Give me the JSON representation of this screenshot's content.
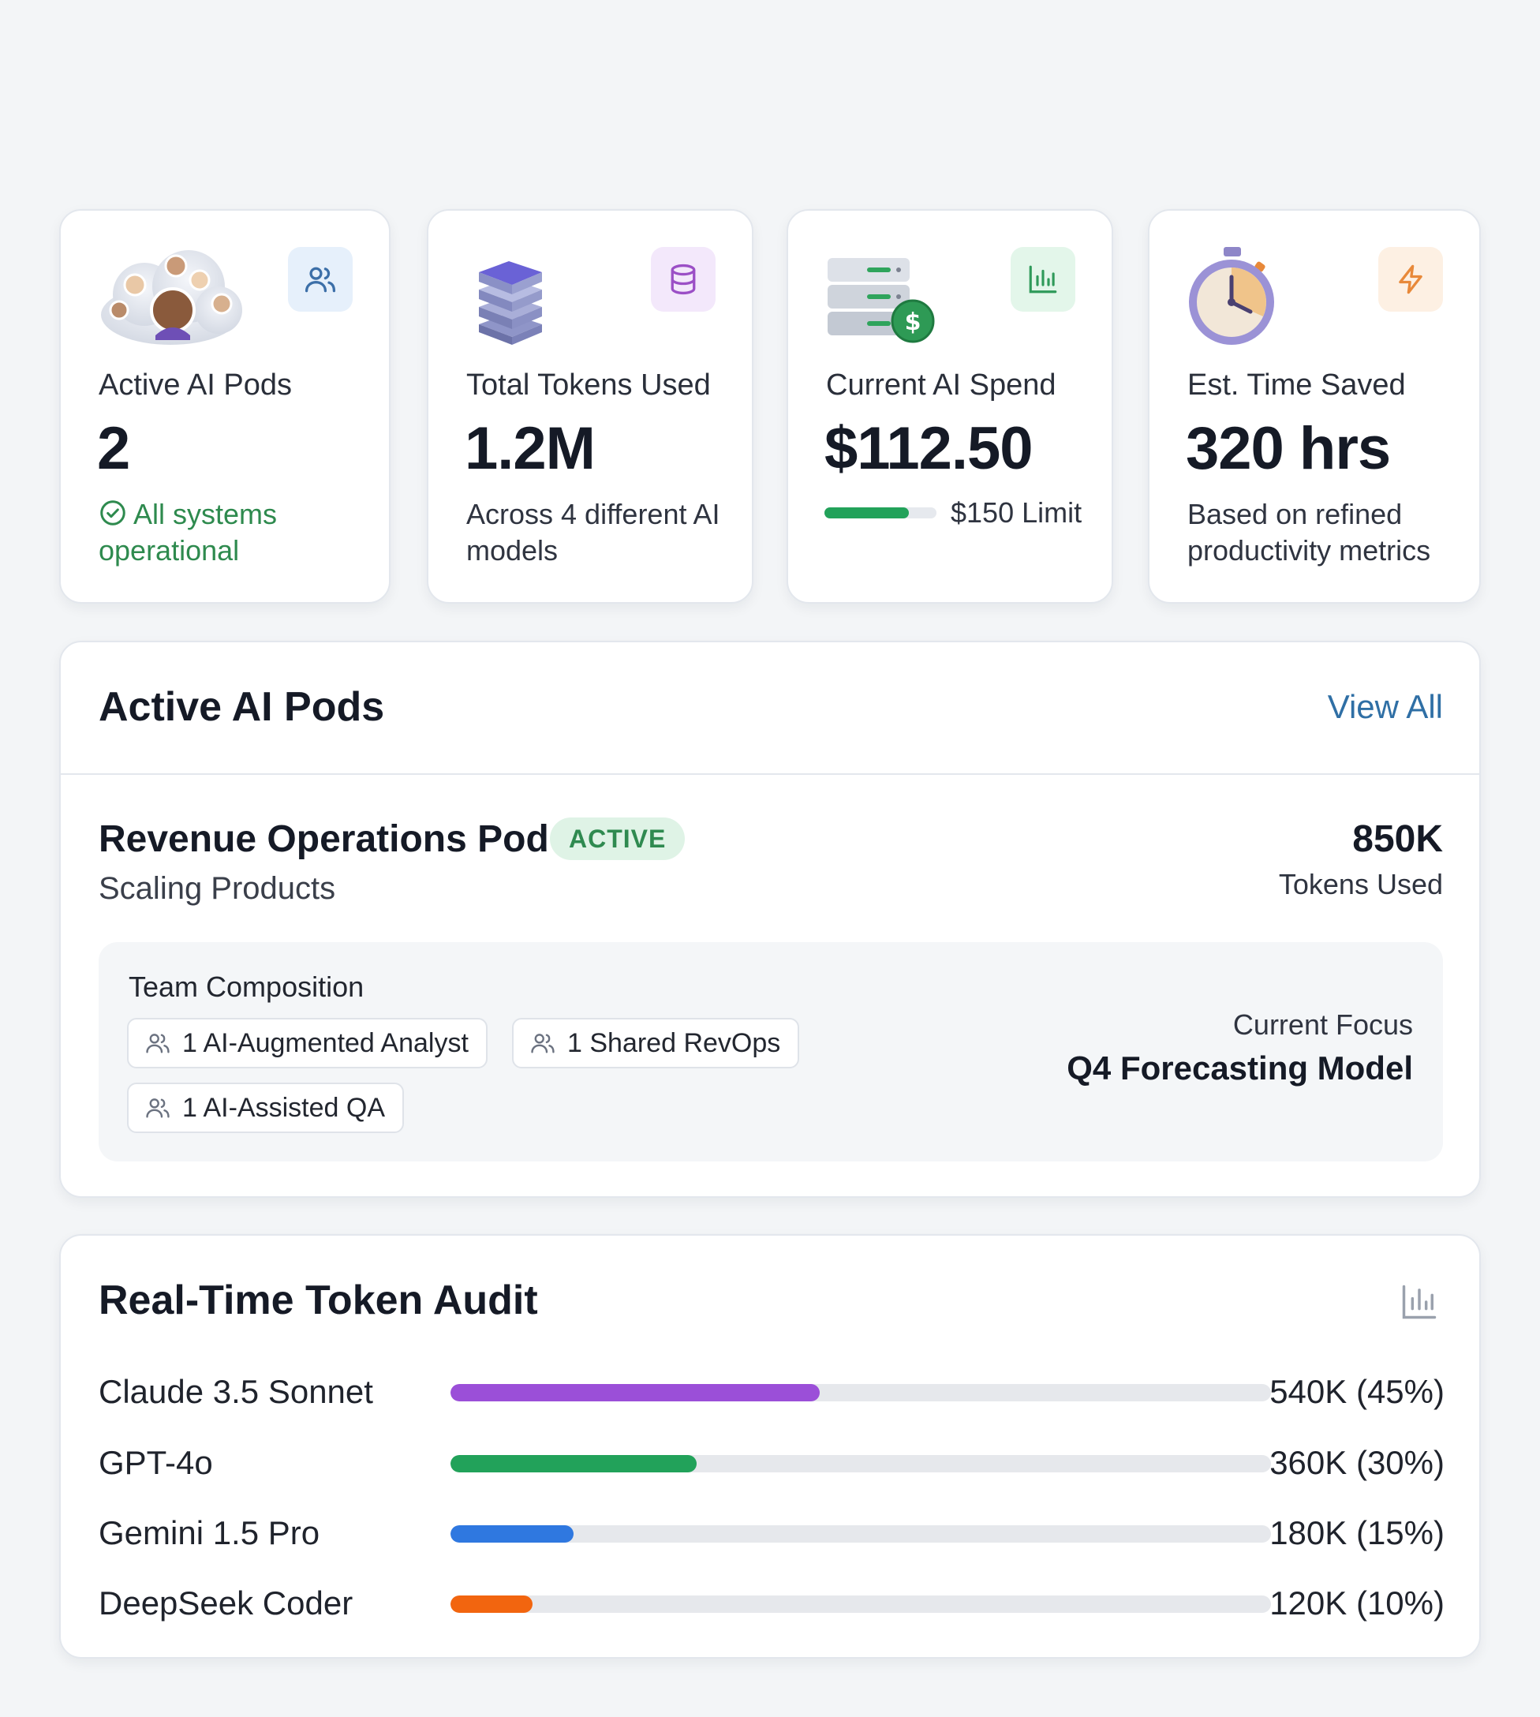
{
  "stats": [
    {
      "label": "Active AI Pods",
      "value": "2",
      "sub": "All systems operational",
      "status_color": "#2e8a4e",
      "icon": "users-icon",
      "badge_color": "#e6f0fb",
      "icon_color": "#3c6fa8"
    },
    {
      "label": "Total Tokens Used",
      "value": "1.2M",
      "sub": "Across 4 different AI models",
      "icon": "database-icon",
      "badge_color": "#f3e8fb",
      "icon_color": "#9b4fc6"
    },
    {
      "label": "Current AI Spend",
      "value": "$112.50",
      "limit_text": "$150 Limit",
      "spend_fraction": 0.75,
      "icon": "bar-chart-icon",
      "badge_color": "#e3f6ea",
      "icon_color": "#2f9a5a"
    },
    {
      "label": "Est. Time Saved",
      "value": "320 hrs",
      "sub": "Based on refined productivity metrics",
      "icon": "lightning-icon",
      "badge_color": "#fdf0e3",
      "icon_color": "#e8893a"
    }
  ],
  "pods_panel": {
    "title": "Active AI Pods",
    "view_all": "View All",
    "pod": {
      "name": "Revenue Operations Pod",
      "status": "ACTIVE",
      "subtitle": "Scaling Products",
      "tokens": "850K",
      "tokens_label": "Tokens Used",
      "team_title": "Team Composition",
      "members": [
        "1 AI-Augmented Analyst",
        "1 Shared RevOps",
        "1 AI-Assisted QA"
      ],
      "focus_label": "Current Focus",
      "focus_value": "Q4 Forecasting Model"
    }
  },
  "audit_panel": {
    "title": "Real-Time Token Audit",
    "icon": "bar-chart-icon",
    "models": [
      {
        "name": "Claude 3.5 Sonnet",
        "value": "540K (45%)",
        "percent": 45,
        "color": "#9b4fd8"
      },
      {
        "name": "GPT-4o",
        "value": "360K (30%)",
        "percent": 30,
        "color": "#22a25a"
      },
      {
        "name": "Gemini 1.5 Pro",
        "value": "180K (15%)",
        "percent": 15,
        "color": "#2f78e0"
      },
      {
        "name": "DeepSeek Coder",
        "value": "120K (10%)",
        "percent": 10,
        "color": "#f2650f"
      }
    ]
  }
}
